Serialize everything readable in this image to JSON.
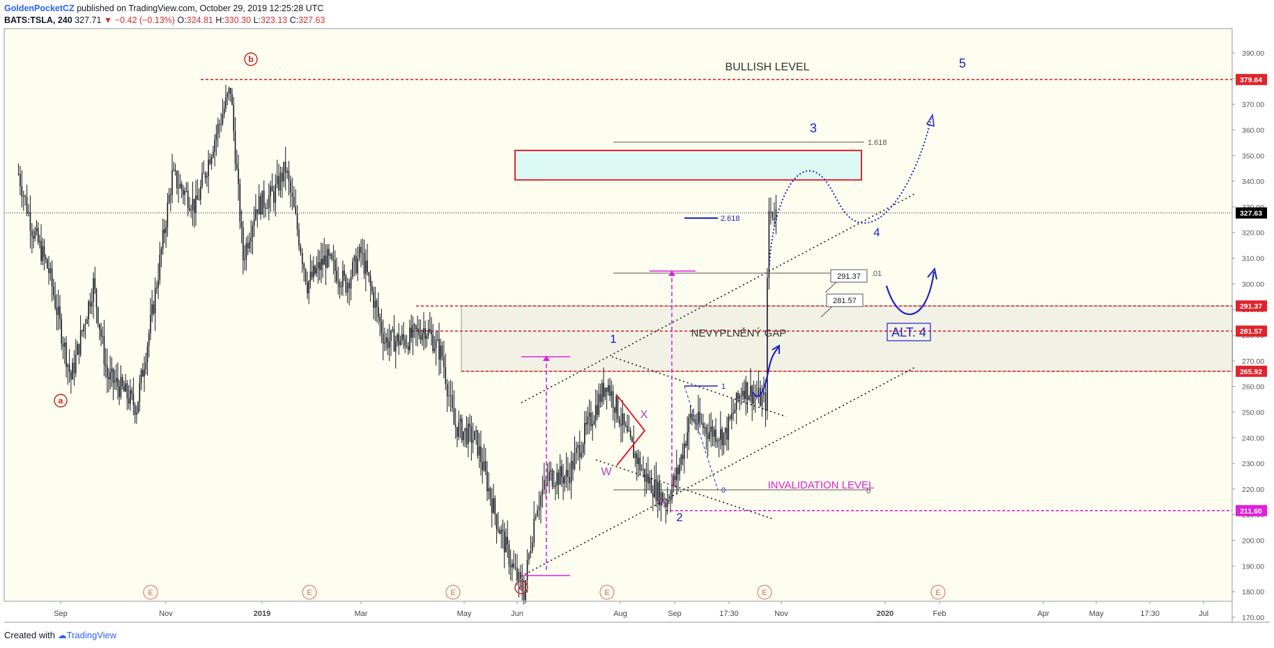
{
  "header": {
    "author": "GoldenPocketCZ",
    "published_text": "published on TradingView.com, October 29, 2019 12:25:28 UTC"
  },
  "ticker": {
    "symbol": "BATS:TSLA, 240",
    "last": "327.71",
    "change_icon": "triangle-down-icon",
    "change": "−0.42 (−0.13%)",
    "open_label": "O:",
    "open": "324.81",
    "high_label": "H:",
    "high": "330.30",
    "low_label": "L:",
    "low": "323.13",
    "close_label": "C:",
    "close": "327.63"
  },
  "footer": {
    "created_with": "Created with",
    "brand": "TradingView",
    "brand_icon": "tradingview-logo-icon"
  },
  "colors": {
    "background": "#fdfdf0",
    "candle": "#131722",
    "red_level": "#e0242b",
    "magenta": "#e01fdb",
    "blue": "#1d22c8",
    "gap_fill": "#f1f1e6",
    "target_fill": "#dcfaf3",
    "price_badge_red": "#e0242b",
    "price_badge_black": "#000000",
    "price_badge_magenta": "#e01fdb"
  },
  "chart_data": {
    "type": "candlestick",
    "symbol": "TSLA",
    "interval": "240",
    "y_axis": {
      "min": 165,
      "max": 397,
      "ticks": [
        "170.00",
        "180.00",
        "190.00",
        "200.00",
        "210.00",
        "220.00",
        "230.00",
        "240.00",
        "250.00",
        "260.00",
        "270.00",
        "280.00",
        "290.00",
        "300.00",
        "310.00",
        "320.00",
        "330.00",
        "340.00",
        "350.00",
        "360.00",
        "370.00",
        "380.00",
        "390.00"
      ]
    },
    "x_axis": {
      "ticks": [
        "Sep",
        "Nov",
        "2019",
        "Mar",
        "May",
        "Jun",
        "Aug",
        "Sep",
        "17:30",
        "Nov",
        "2020",
        "Feb",
        "Apr",
        "May",
        "17:30",
        "Jul"
      ],
      "bold_ticks": [
        "2019",
        "2020"
      ]
    },
    "price_series": [
      [
        "2018-08-07",
        343
      ],
      [
        "2018-08-15",
        322
      ],
      [
        "2018-08-25",
        305
      ],
      [
        "2018-09-07",
        263
      ],
      [
        "2018-09-20",
        300
      ],
      [
        "2018-09-28",
        264
      ],
      [
        "2018-10-05",
        260
      ],
      [
        "2018-10-15",
        252
      ],
      [
        "2018-10-24",
        288
      ],
      [
        "2018-11-05",
        342
      ],
      [
        "2018-11-20",
        330
      ],
      [
        "2018-12-01",
        355
      ],
      [
        "2018-12-12",
        376
      ],
      [
        "2018-12-20",
        310
      ],
      [
        "2018-12-28",
        330
      ],
      [
        "2019-01-08",
        335
      ],
      [
        "2019-01-15",
        345
      ],
      [
        "2019-01-21",
        325
      ],
      [
        "2019-01-28",
        300
      ],
      [
        "2019-02-08",
        310
      ],
      [
        "2019-02-20",
        300
      ],
      [
        "2019-03-01",
        312
      ],
      [
        "2019-03-15",
        278
      ],
      [
        "2019-03-28",
        278
      ],
      [
        "2019-04-08",
        283
      ],
      [
        "2019-04-18",
        272
      ],
      [
        "2019-04-25",
        245
      ],
      [
        "2019-05-08",
        239
      ],
      [
        "2019-05-20",
        208
      ],
      [
        "2019-05-30",
        188
      ],
      [
        "2019-06-05",
        180
      ],
      [
        "2019-06-12",
        213
      ],
      [
        "2019-06-20",
        225
      ],
      [
        "2019-07-01",
        225
      ],
      [
        "2019-07-10",
        240
      ],
      [
        "2019-07-24",
        262
      ],
      [
        "2019-08-05",
        240
      ],
      [
        "2019-08-15",
        225
      ],
      [
        "2019-08-27",
        215
      ],
      [
        "2019-09-03",
        227
      ],
      [
        "2019-09-10",
        248
      ],
      [
        "2019-09-20",
        243
      ],
      [
        "2019-09-30",
        241
      ],
      [
        "2019-10-10",
        260
      ],
      [
        "2019-10-18",
        256
      ],
      [
        "2019-10-23",
        254
      ],
      [
        "2019-10-24",
        299
      ],
      [
        "2019-10-25",
        328
      ],
      [
        "2019-10-29",
        327.63
      ]
    ],
    "levels": [
      {
        "label": "379.64",
        "price": 379.64,
        "color": "red",
        "style": "dashed"
      },
      {
        "label": "327.63",
        "price": 327.63,
        "color": "black",
        "style": "dotted"
      },
      {
        "label": "291.37",
        "price": 291.37,
        "color": "red",
        "style": "dashed"
      },
      {
        "label": "281.57",
        "price": 281.57,
        "color": "red",
        "style": "dashed"
      },
      {
        "label": "265.92",
        "price": 265.92,
        "color": "red",
        "style": "dashed"
      },
      {
        "label": "211.60",
        "price": 211.6,
        "color": "magenta",
        "style": "dashed"
      }
    ],
    "fib": {
      "level_1618": "1.618",
      "level_01": ".01",
      "level_2618": "2.618",
      "level_1": "1",
      "level_0": "0"
    },
    "callouts": {
      "c1": "291.37",
      "c2": "281.57"
    },
    "annotations": {
      "bullish": "BULLISH LEVEL",
      "gap": "NEVYPLNĚNÝ GAP",
      "alt4": "ALT. 4",
      "invalidation": "INVALIDATION LEVEL",
      "wave_a": "a",
      "wave_b": "b",
      "wave_c": "c",
      "wave_1": "1",
      "wave_2": "2",
      "wave_3": "3",
      "wave_4": "4",
      "wave_5": "5",
      "wave_w": "W",
      "wave_x": "X",
      "wave_y": "Y",
      "earnings": "E"
    }
  }
}
